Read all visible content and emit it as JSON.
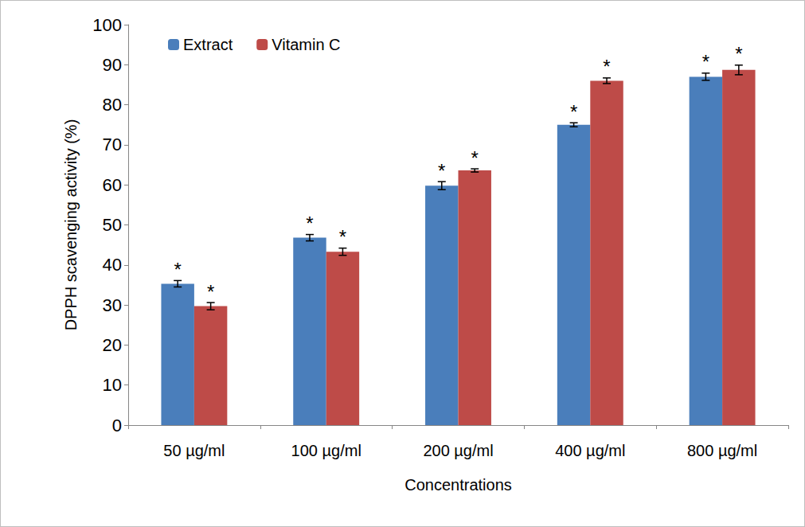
{
  "chart_data": {
    "type": "bar",
    "x_label": "Concentrations",
    "y_label": "DPPH scavenging activity (%)",
    "categories": [
      "50 µg/ml",
      "100 µg/ml",
      "200 µg/ml",
      "400 µg/ml",
      "800 µg/ml"
    ],
    "series": [
      {
        "name": "Extract",
        "color": "#4a7ebb",
        "values": [
          35.3,
          46.8,
          59.8,
          75.0,
          87.0
        ],
        "errors": [
          0.8,
          0.8,
          1.0,
          0.5,
          0.9
        ],
        "annotations": [
          "*",
          "*",
          "*",
          "*",
          "*"
        ]
      },
      {
        "name": "Vitamin C",
        "color": "#be4b48",
        "values": [
          29.7,
          43.3,
          63.6,
          86.0,
          88.7
        ],
        "errors": [
          0.9,
          0.9,
          0.4,
          0.7,
          1.2
        ],
        "annotations": [
          "*",
          "*",
          "*",
          "*",
          "*"
        ]
      }
    ],
    "ylim": [
      0,
      100
    ],
    "yticks": [
      0,
      10,
      20,
      30,
      40,
      50,
      60,
      70,
      80,
      90,
      100
    ],
    "grid": false,
    "legend": "top-left"
  }
}
